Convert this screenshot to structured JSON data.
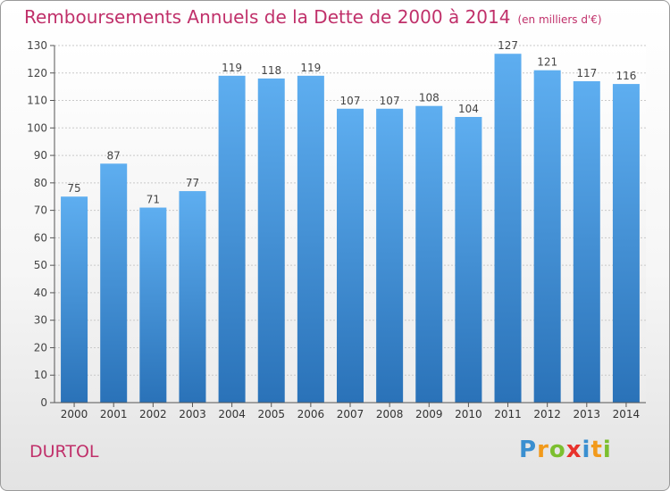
{
  "title": "Remboursements Annuels de la Dette de 2000 à 2014",
  "subtitle": "(en milliers d'€)",
  "commune": "DURTOL",
  "logo": {
    "letters": [
      {
        "ch": "P",
        "color": "#3a8fd0"
      },
      {
        "ch": "r",
        "color": "#f29a1b"
      },
      {
        "ch": "o",
        "color": "#7cbf2f"
      },
      {
        "ch": "x",
        "color": "#e8322c"
      },
      {
        "ch": "i",
        "color": "#3a8fd0"
      },
      {
        "ch": "t",
        "color": "#f29a1b"
      },
      {
        "ch": "i",
        "color": "#7cbf2f"
      }
    ]
  },
  "chart_data": {
    "type": "bar",
    "categories": [
      "2000",
      "2001",
      "2002",
      "2003",
      "2004",
      "2005",
      "2006",
      "2007",
      "2008",
      "2009",
      "2010",
      "2011",
      "2012",
      "2013",
      "2014"
    ],
    "values": [
      75,
      87,
      71,
      77,
      119,
      118,
      119,
      107,
      107,
      108,
      104,
      127,
      121,
      117,
      116
    ],
    "ylim": [
      0,
      130
    ],
    "yticks": [
      0,
      10,
      20,
      30,
      40,
      50,
      60,
      70,
      80,
      90,
      100,
      110,
      120,
      130
    ],
    "grid": true,
    "bar_color": "#3b8fd6",
    "bar_color_light": "#5eaef0",
    "bar_color_dark": "#2a72b8"
  }
}
